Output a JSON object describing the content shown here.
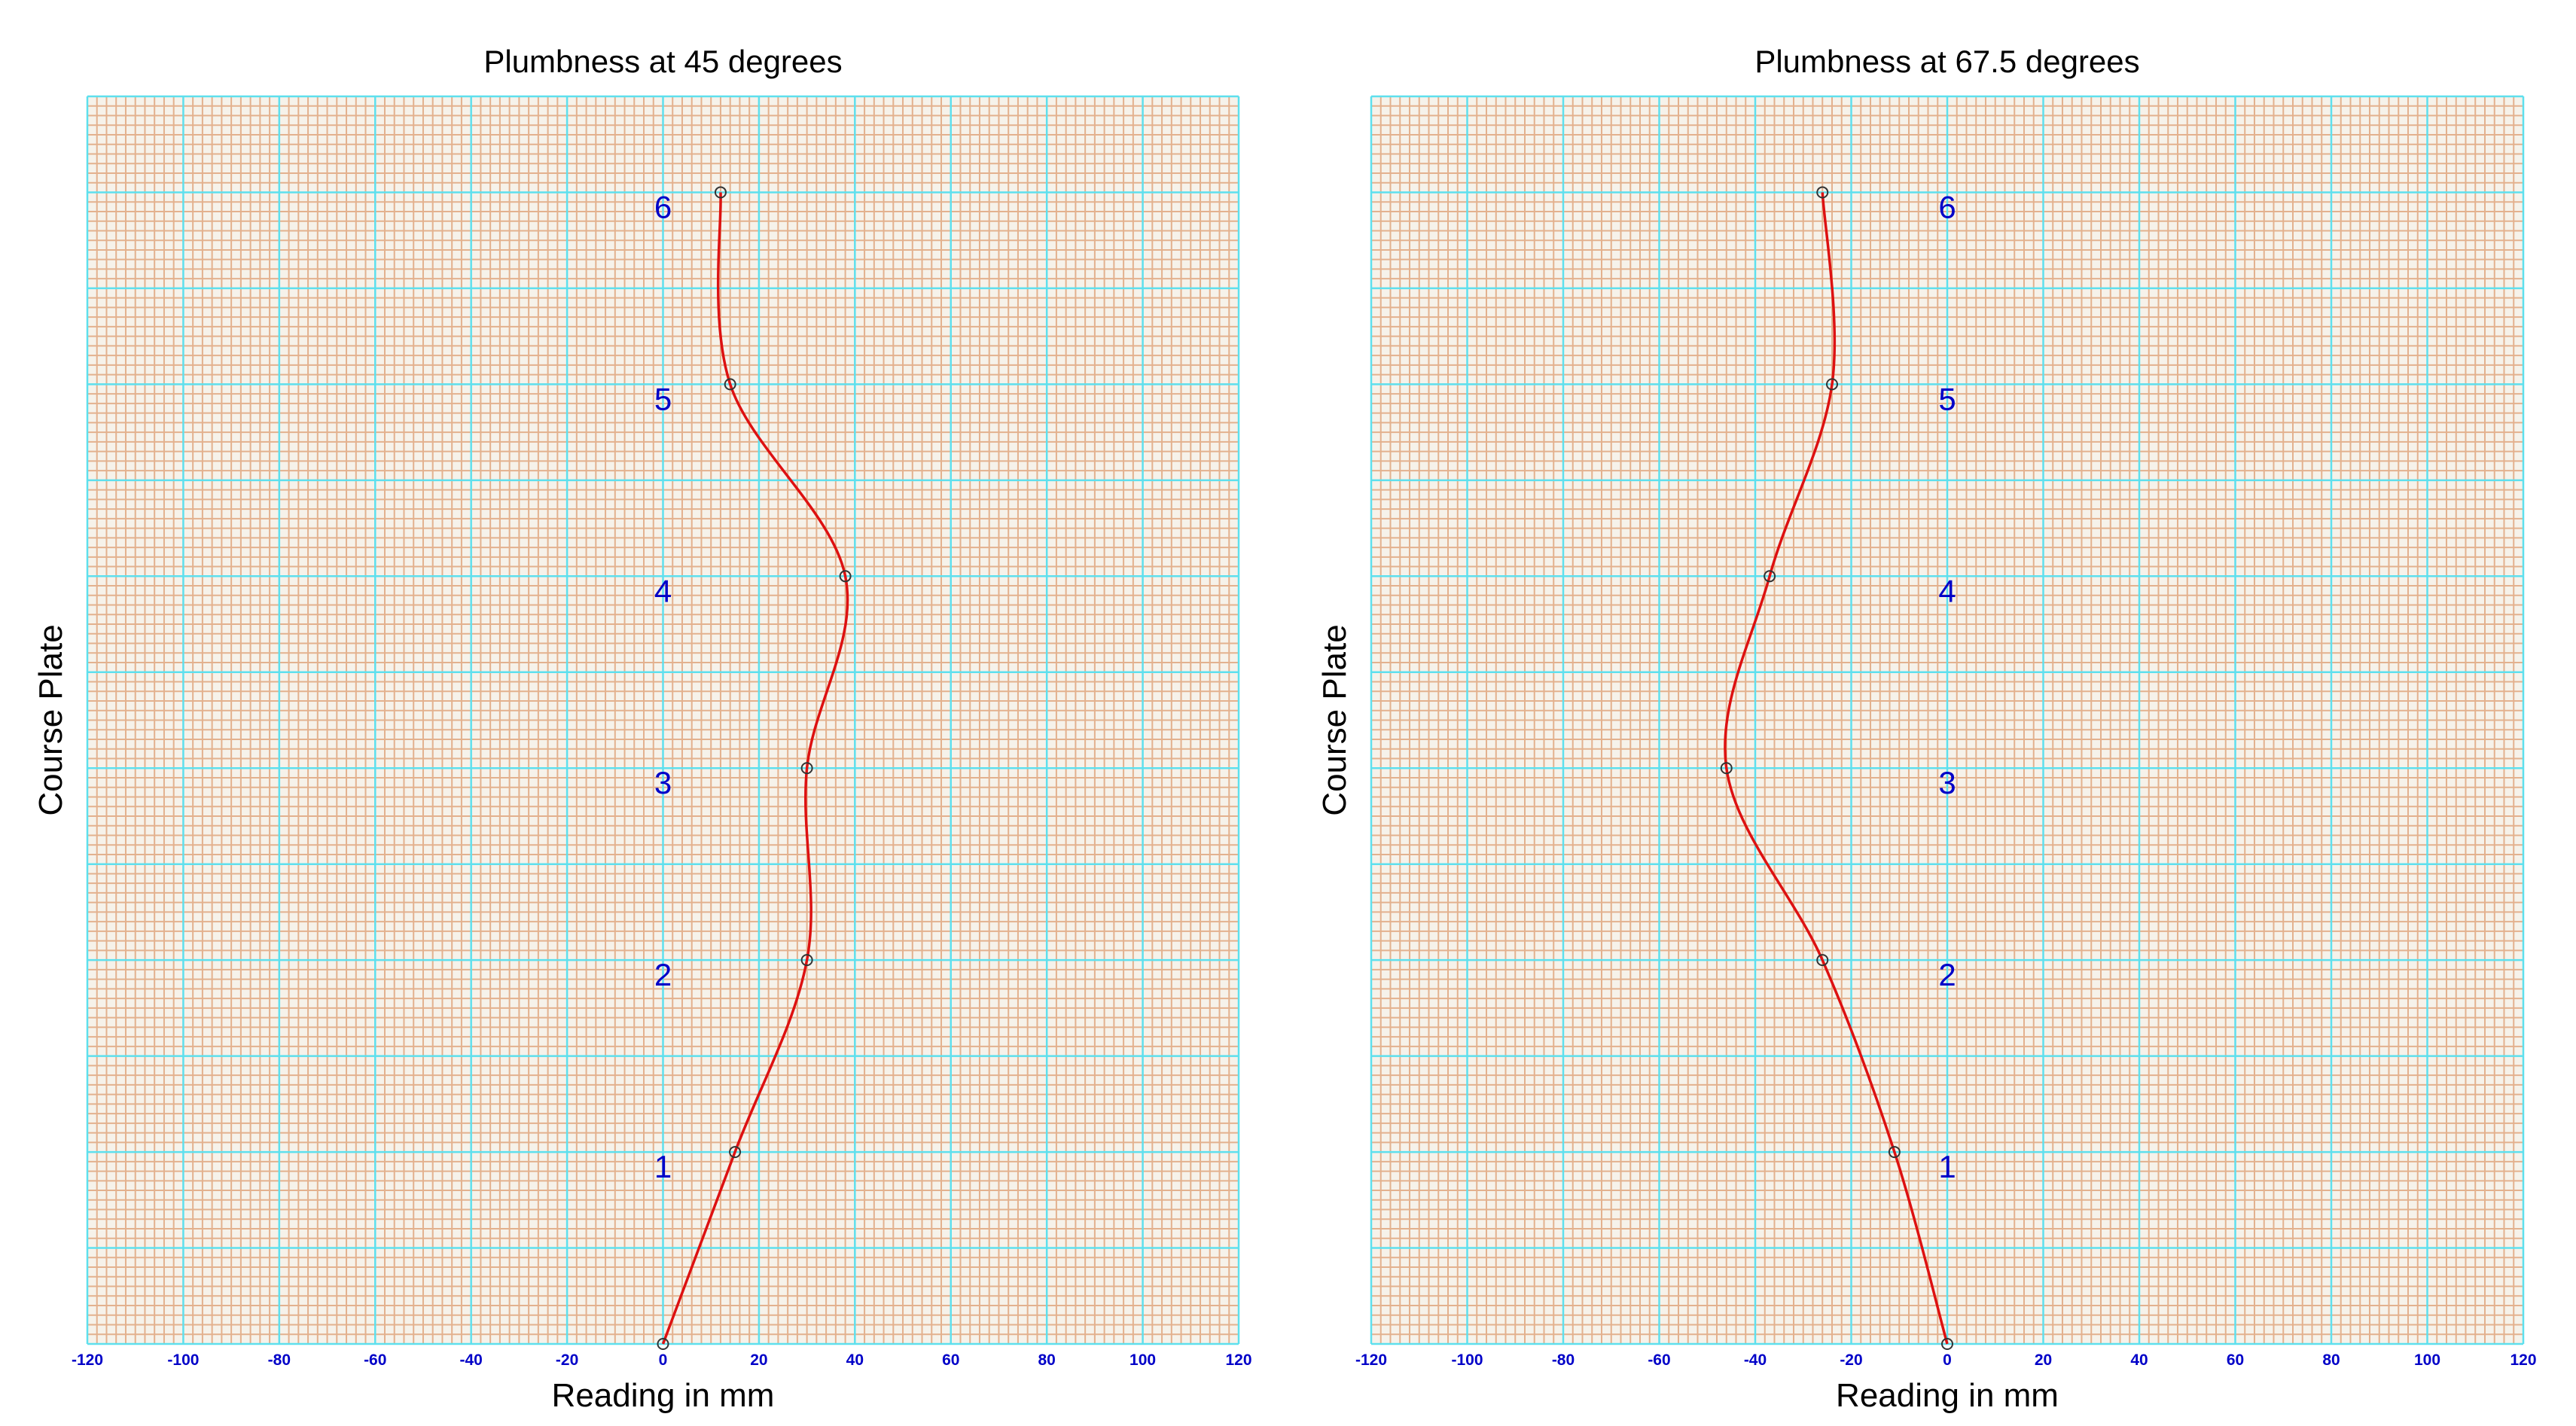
{
  "colors": {
    "paper": "#f6f2ea",
    "minor_grid": "#e3b18e",
    "major_grid": "#5ee0ee",
    "curve": "#dd1111",
    "marker": "#333333",
    "tick_text": "#0000c8"
  },
  "chart_data": [
    {
      "type": "line",
      "title": "Plumbness at 45 degrees",
      "xlabel": "Reading in mm",
      "ylabel": "Course Plate",
      "xlim": [
        -120,
        120
      ],
      "ylim": [
        0,
        6.5
      ],
      "x_ticks": [
        "-120",
        "-100",
        "-80",
        "-60",
        "-40",
        "-20",
        "0",
        "20",
        "40",
        "60",
        "80",
        "100",
        "120"
      ],
      "course_labels": [
        "1",
        "2",
        "3",
        "4",
        "5",
        "6"
      ],
      "smooth": true,
      "markers": true,
      "grid": true,
      "x": [
        0,
        15,
        30,
        30,
        38,
        14,
        12
      ],
      "y": [
        0,
        1,
        2,
        3,
        4,
        5,
        6
      ]
    },
    {
      "type": "line",
      "title": "Plumbness at 67.5 degrees",
      "xlabel": "Reading in mm",
      "ylabel": "Course Plate",
      "xlim": [
        -120,
        120
      ],
      "ylim": [
        0,
        6.5
      ],
      "x_ticks": [
        "-120",
        "-100",
        "-80",
        "-60",
        "-40",
        "-20",
        "0",
        "20",
        "40",
        "60",
        "80",
        "100",
        "120"
      ],
      "course_labels": [
        "1",
        "2",
        "3",
        "4",
        "5",
        "6"
      ],
      "smooth": true,
      "markers": true,
      "grid": true,
      "x": [
        0,
        -11,
        -26,
        -46,
        -37,
        -24,
        -26
      ],
      "y": [
        0,
        1,
        2,
        3,
        4,
        5,
        6
      ]
    }
  ]
}
